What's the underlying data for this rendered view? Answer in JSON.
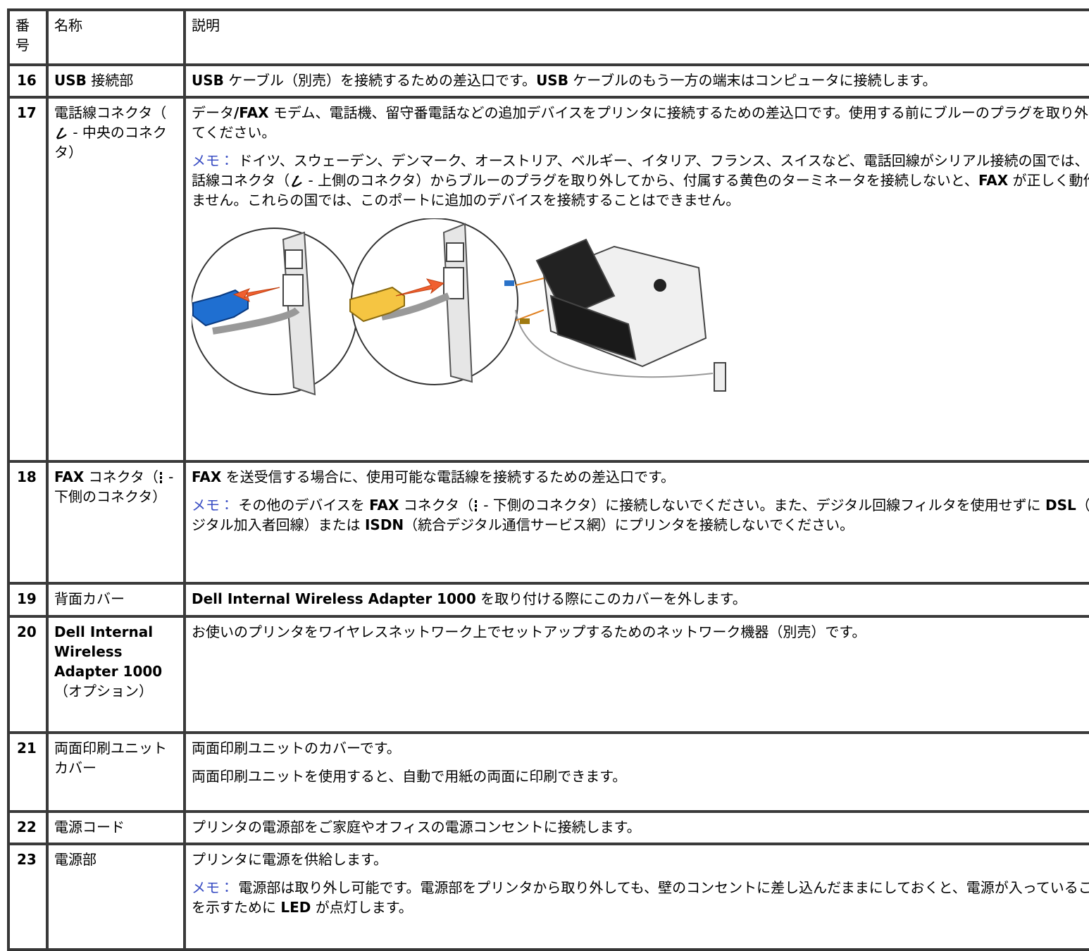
{
  "table": {
    "header": [
      "番号",
      "名称",
      "説明"
    ],
    "rows": [
      {
        "number": "16",
        "name": [
          "USB",
          " 接続部"
        ],
        "description": [
          [
            "USB",
            " ケーブル（別売）を接続するための差込口です。",
            "USB",
            " ケーブルのもう一方の端末はコンピュータに接続します。"
          ]
        ]
      },
      {
        "number": "17",
        "name": [
          "電話線コネクタ（",
          " - 中央のコネクタ）"
        ],
        "description": [
          [
            "データ",
            "/FAX",
            " モデム、電話機、留守番電話などの追加デバイスをプリンタに接続するための差込口です。使用する前にブルーのプラグを取り外してください。"
          ],
          [
            "メモ：",
            " ドイツ、スウェーデン、デンマーク、オーストリア、ベルギー、イタリア、フランス、スイスなど、電話回線がシリアル接続の国では、電話線コネクタ（",
            " - 上側のコネクタ）からブルーのプラグを取り外してから、付属する黄色のターミネータを接続しないと、",
            "FAX",
            " が正しく動作しません。これらの国では、このポートに追加のデバイスを接続することはできません。"
          ]
        ]
      },
      {
        "number": "18",
        "name": [
          "FAX",
          " コネクタ（",
          " - 下側のコネクタ）"
        ],
        "description": [
          [
            "FAX",
            " を送受信する場合に、使用可能な電話線を接続するための差込口です。"
          ],
          [
            "メモ：",
            " その他のデバイスを ",
            "FAX",
            " コネクタ（",
            " - 下側のコネクタ）に接続しないでください。また、デジタル回線フィルタを使用せずに ",
            "DSL",
            "（デジタル加入者回線）または ",
            "ISDN",
            "（統合デジタル通信サービス網）にプリンタを接続しないでください。"
          ]
        ]
      },
      {
        "number": "19",
        "name": [
          "背面カバー"
        ],
        "description": [
          [
            "Dell Internal Wireless Adapter 1000",
            " を取り付ける際にこのカバーを外します。"
          ]
        ]
      },
      {
        "number": "20",
        "name": [
          "Dell Internal Wireless Adapter 1000",
          "（オプション）"
        ],
        "description": [
          [
            "お使いのプリンタをワイヤレスネットワーク上でセットアップするためのネットワーク機器（別売）です。"
          ]
        ]
      },
      {
        "number": "21",
        "name": [
          "両面印刷ユニットカバー"
        ],
        "description": [
          [
            "両面印刷ユニットのカバーです。"
          ],
          [
            "両面印刷ユニットを使用すると、自動で用紙の両面に印刷できます。"
          ]
        ]
      },
      {
        "number": "22",
        "name": [
          "電源コード"
        ],
        "description": [
          [
            "プリンタの電源部をご家庭やオフィスの電源コンセントに接続します。"
          ]
        ]
      },
      {
        "number": "23",
        "name": [
          "電源部"
        ],
        "description": [
          [
            "プリンタに電源を供給します。"
          ],
          [
            "メモ：",
            " 電源部は取り外し可能です。電源部をプリンタから取り外しても、壁のコンセントに差し込んだままにしておくと、電源が入っていることを示すために ",
            "LED",
            " が点灯します。"
          ]
        ]
      }
    ]
  }
}
